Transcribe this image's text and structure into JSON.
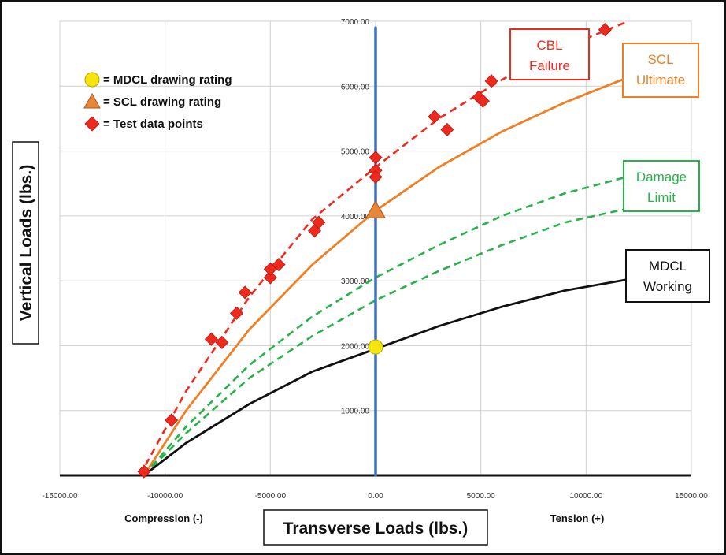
{
  "chart_data": {
    "type": "line",
    "xlim": [
      -15000,
      15000
    ],
    "ylim": [
      0,
      7000
    ],
    "x_ticks": [
      "-15000.00",
      "-10000.00",
      "-5000.00",
      "0.00",
      "5000.00",
      "10000.00",
      "15000.00"
    ],
    "y_ticks": [
      "1000.00",
      "2000.00",
      "3000.00",
      "4000.00",
      "5000.00",
      "6000.00",
      "7000.00"
    ],
    "xlabel": "Transverse Loads (lbs.)",
    "ylabel": "Vertical Loads (lbs.)",
    "x_direction_labels": {
      "left": "Compression (-)",
      "right": "Tension (+)"
    },
    "grid": true,
    "legend": {
      "placement": "top-left",
      "items": [
        {
          "marker": "circle",
          "color": "#f5e50a",
          "label": "= MDCL drawing rating"
        },
        {
          "marker": "triangle",
          "color": "#e8873a",
          "label": "= SCL drawing rating"
        },
        {
          "marker": "diamond",
          "color": "#ee2a1e",
          "label": "= Test data points"
        }
      ]
    },
    "curve_labels": {
      "cbl": [
        "CBL",
        "Failure"
      ],
      "scl": [
        "SCL",
        "Ultimate"
      ],
      "damage": [
        "Damage",
        "Limit"
      ],
      "mdcl": [
        "MDCL",
        "Working"
      ]
    },
    "series": [
      {
        "key": "cbl",
        "style": "dashed",
        "color": "#ee2a1e",
        "points": [
          [
            -11200,
            0
          ],
          [
            -9000,
            1300
          ],
          [
            -6000,
            2750
          ],
          [
            -3000,
            3950
          ],
          [
            0,
            4750
          ],
          [
            3000,
            5500
          ],
          [
            6000,
            6100
          ],
          [
            9000,
            6600
          ],
          [
            12000,
            7000
          ]
        ]
      },
      {
        "key": "scl",
        "style": "solid",
        "color": "#ef7f22",
        "points": [
          [
            -11000,
            0
          ],
          [
            -9000,
            1000
          ],
          [
            -6000,
            2250
          ],
          [
            -3000,
            3250
          ],
          [
            0,
            4080
          ],
          [
            3000,
            4750
          ],
          [
            6000,
            5300
          ],
          [
            9000,
            5750
          ],
          [
            12500,
            6200
          ]
        ]
      },
      {
        "key": "damage_upper",
        "style": "dashed",
        "color": "#29b24a",
        "points": [
          [
            -11000,
            0
          ],
          [
            -9000,
            750
          ],
          [
            -6000,
            1700
          ],
          [
            -3000,
            2450
          ],
          [
            0,
            3050
          ],
          [
            3000,
            3550
          ],
          [
            6000,
            4000
          ],
          [
            9000,
            4350
          ],
          [
            12500,
            4650
          ]
        ]
      },
      {
        "key": "damage_lower",
        "style": "dashed",
        "color": "#29b24a",
        "points": [
          [
            -11000,
            0
          ],
          [
            -9000,
            650
          ],
          [
            -6000,
            1500
          ],
          [
            -3000,
            2150
          ],
          [
            0,
            2700
          ],
          [
            3000,
            3150
          ],
          [
            6000,
            3550
          ],
          [
            9000,
            3900
          ],
          [
            12500,
            4150
          ]
        ]
      },
      {
        "key": "mdcl",
        "style": "solid",
        "color": "#111111",
        "points": [
          [
            -11000,
            0
          ],
          [
            -9000,
            500
          ],
          [
            -6000,
            1100
          ],
          [
            -3000,
            1600
          ],
          [
            0,
            1950
          ],
          [
            3000,
            2300
          ],
          [
            6000,
            2600
          ],
          [
            9000,
            2850
          ],
          [
            12500,
            3050
          ]
        ]
      },
      {
        "key": "zero_line",
        "style": "solid",
        "color": "#3f6fc6",
        "points": [
          [
            0,
            0
          ],
          [
            0,
            6900
          ]
        ]
      }
    ],
    "test_points": [
      [
        -11000,
        60
      ],
      [
        -9700,
        850
      ],
      [
        -7800,
        2100
      ],
      [
        -7300,
        2050
      ],
      [
        -6600,
        2500
      ],
      [
        -6200,
        2820
      ],
      [
        -5000,
        3050
      ],
      [
        -5000,
        3180
      ],
      [
        -4600,
        3250
      ],
      [
        -2900,
        3770
      ],
      [
        -2700,
        3900
      ],
      [
        0,
        4900
      ],
      [
        0,
        4700
      ],
      [
        0,
        4600
      ],
      [
        2800,
        5530
      ],
      [
        3400,
        5330
      ],
      [
        4900,
        5830
      ],
      [
        5100,
        5770
      ],
      [
        5500,
        6080
      ],
      [
        10900,
        6870
      ]
    ],
    "mdcl_rating": {
      "x": 0,
      "y": 1980
    },
    "scl_rating": {
      "x": 0,
      "y": 4080
    }
  }
}
